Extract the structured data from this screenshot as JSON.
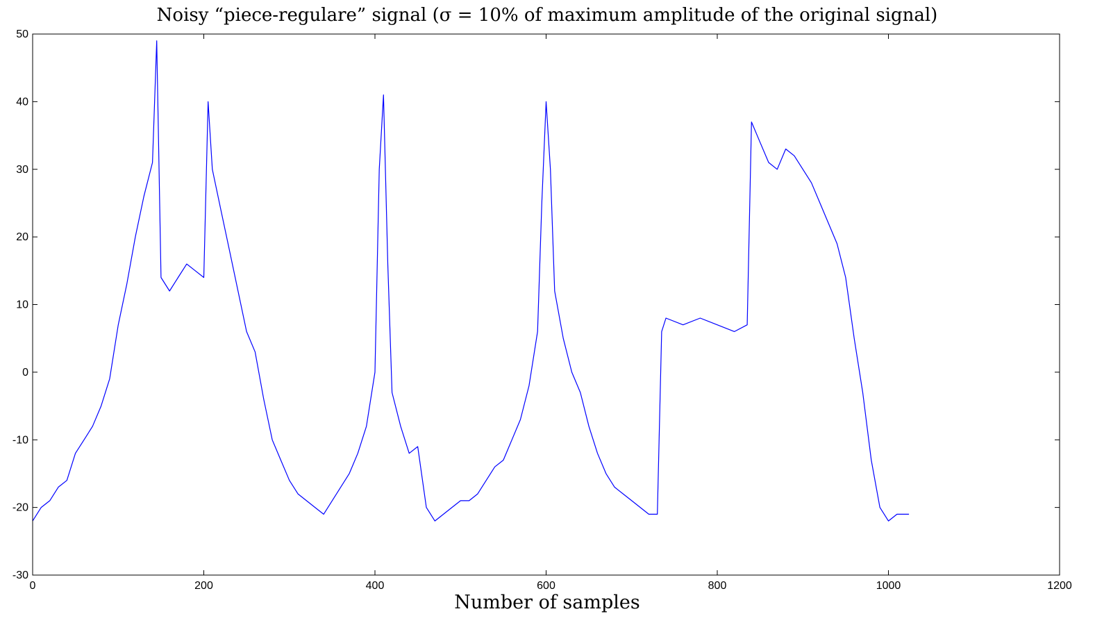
{
  "chart_data": {
    "type": "line",
    "title": "Noisy “piece-regulare” signal (σ = 10% of maximum amplitude of the original signal)",
    "xlabel": "Number of samples",
    "ylabel": "",
    "xlim": [
      0,
      1200
    ],
    "ylim": [
      -30,
      50
    ],
    "xticks": [
      "0",
      "200",
      "400",
      "600",
      "800",
      "1000",
      "1200"
    ],
    "yticks": [
      "-30",
      "-20",
      "-10",
      "0",
      "10",
      "20",
      "30",
      "40",
      "50"
    ],
    "grid": false,
    "series": [
      {
        "color": "#0000ff",
        "x": [
          0,
          10,
          20,
          30,
          40,
          50,
          60,
          70,
          80,
          90,
          100,
          110,
          120,
          130,
          140,
          145,
          150,
          160,
          170,
          180,
          190,
          200,
          205,
          210,
          220,
          230,
          240,
          250,
          260,
          270,
          280,
          290,
          300,
          310,
          320,
          330,
          340,
          350,
          360,
          370,
          380,
          390,
          400,
          405,
          410,
          415,
          420,
          430,
          440,
          450,
          460,
          470,
          480,
          490,
          500,
          510,
          520,
          530,
          540,
          550,
          560,
          570,
          580,
          590,
          595,
          600,
          605,
          610,
          620,
          630,
          640,
          650,
          660,
          670,
          680,
          690,
          700,
          710,
          720,
          730,
          735,
          740,
          760,
          780,
          800,
          820,
          835,
          840,
          850,
          860,
          870,
          880,
          890,
          900,
          910,
          920,
          930,
          940,
          950,
          960,
          970,
          980,
          990,
          1000,
          1010,
          1020,
          1024
        ],
        "y": [
          -22,
          -20,
          -19,
          -17,
          -16,
          -12,
          -10,
          -8,
          -5,
          -1,
          7,
          13,
          20,
          26,
          31,
          49,
          14,
          12,
          14,
          16,
          15,
          14,
          40,
          30,
          24,
          18,
          12,
          6,
          3,
          -4,
          -10,
          -13,
          -16,
          -18,
          -19,
          -20,
          -21,
          -19,
          -17,
          -15,
          -12,
          -8,
          0,
          30,
          41,
          16,
          -3,
          -8,
          -12,
          -11,
          -20,
          -22,
          -21,
          -20,
          -19,
          -19,
          -18,
          -16,
          -14,
          -13,
          -10,
          -7,
          -2,
          6,
          25,
          40,
          30,
          12,
          5,
          0,
          -3,
          -8,
          -12,
          -15,
          -17,
          -18,
          -19,
          -20,
          -21,
          -21,
          6,
          8,
          7,
          8,
          7,
          6,
          7,
          37,
          34,
          31,
          30,
          33,
          32,
          30,
          28,
          25,
          22,
          19,
          14,
          5,
          -3,
          -13,
          -20,
          -22,
          -21,
          -21,
          -21
        ]
      }
    ]
  }
}
